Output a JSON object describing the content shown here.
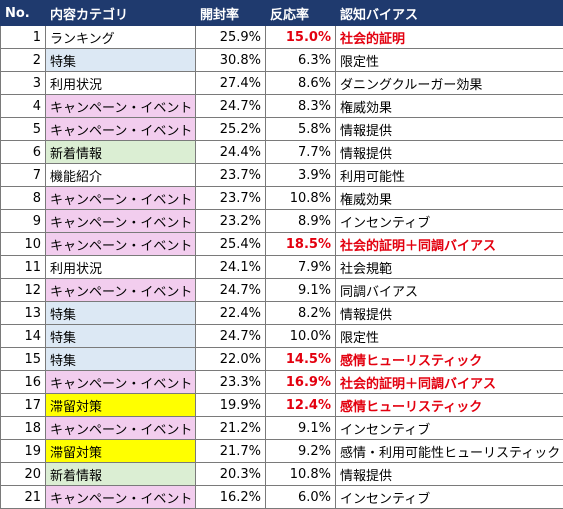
{
  "headers": [
    "No.",
    "内容カテゴリ",
    "開封率",
    "反応率",
    "認知バイアス"
  ],
  "colors": {
    "header_bg": "#1f3a6e",
    "header_text": "#ffffff",
    "campaign_bg": "#f2cdee",
    "feature_bg": "#dce8f4",
    "new_info_bg": "#dbeed3",
    "retention_bg": "#ffff00",
    "highlight_text": "#e3000f"
  },
  "rows": [
    {
      "no": "1",
      "category": "ランキング",
      "open": "25.9%",
      "response": "15.0%",
      "bias": "社会的証明",
      "cat_bg": "",
      "highlight": true
    },
    {
      "no": "2",
      "category": "特集",
      "open": "30.8%",
      "response": "6.3%",
      "bias": "限定性",
      "cat_bg": "feat",
      "highlight": false
    },
    {
      "no": "3",
      "category": "利用状況",
      "open": "27.4%",
      "response": "8.6%",
      "bias": "ダニングクルーガー効果",
      "cat_bg": "",
      "highlight": false
    },
    {
      "no": "4",
      "category": "キャンペーン・イベント",
      "open": "24.7%",
      "response": "8.3%",
      "bias": "権威効果",
      "cat_bg": "camp",
      "highlight": false
    },
    {
      "no": "5",
      "category": "キャンペーン・イベント",
      "open": "25.2%",
      "response": "5.8%",
      "bias": "情報提供",
      "cat_bg": "camp",
      "highlight": false
    },
    {
      "no": "6",
      "category": "新着情報",
      "open": "24.4%",
      "response": "7.7%",
      "bias": "情報提供",
      "cat_bg": "new",
      "highlight": false
    },
    {
      "no": "7",
      "category": "機能紹介",
      "open": "23.7%",
      "response": "3.9%",
      "bias": "利用可能性",
      "cat_bg": "",
      "highlight": false
    },
    {
      "no": "8",
      "category": "キャンペーン・イベント",
      "open": "23.7%",
      "response": "10.8%",
      "bias": "権威効果",
      "cat_bg": "camp",
      "highlight": false
    },
    {
      "no": "9",
      "category": "キャンペーン・イベント",
      "open": "23.2%",
      "response": "8.9%",
      "bias": "インセンティブ",
      "cat_bg": "camp",
      "highlight": false
    },
    {
      "no": "10",
      "category": "キャンペーン・イベント",
      "open": "25.4%",
      "response": "18.5%",
      "bias": "社会的証明＋同調バイアス",
      "cat_bg": "camp",
      "highlight": true
    },
    {
      "no": "11",
      "category": "利用状況",
      "open": "24.1%",
      "response": "7.9%",
      "bias": "社会規範",
      "cat_bg": "",
      "highlight": false
    },
    {
      "no": "12",
      "category": "キャンペーン・イベント",
      "open": "24.7%",
      "response": "9.1%",
      "bias": "同調バイアス",
      "cat_bg": "camp",
      "highlight": false
    },
    {
      "no": "13",
      "category": "特集",
      "open": "22.4%",
      "response": "8.2%",
      "bias": "情報提供",
      "cat_bg": "feat",
      "highlight": false
    },
    {
      "no": "14",
      "category": "特集",
      "open": "24.7%",
      "response": "10.0%",
      "bias": "限定性",
      "cat_bg": "feat",
      "highlight": false
    },
    {
      "no": "15",
      "category": "特集",
      "open": "22.0%",
      "response": "14.5%",
      "bias": "感情ヒューリスティック",
      "cat_bg": "feat",
      "highlight": true
    },
    {
      "no": "16",
      "category": "キャンペーン・イベント",
      "open": "23.3%",
      "response": "16.9%",
      "bias": "社会的証明＋同調バイアス",
      "cat_bg": "camp",
      "highlight": true
    },
    {
      "no": "17",
      "category": "滞留対策",
      "open": "19.9%",
      "response": "12.4%",
      "bias": "感情ヒューリスティック",
      "cat_bg": "stay",
      "highlight": true
    },
    {
      "no": "18",
      "category": "キャンペーン・イベント",
      "open": "21.2%",
      "response": "9.1%",
      "bias": "インセンティブ",
      "cat_bg": "camp",
      "highlight": false
    },
    {
      "no": "19",
      "category": "滞留対策",
      "open": "21.7%",
      "response": "9.2%",
      "bias": "感情・利用可能性ヒューリスティック",
      "cat_bg": "stay",
      "highlight": false
    },
    {
      "no": "20",
      "category": "新着情報",
      "open": "20.3%",
      "response": "10.8%",
      "bias": "情報提供",
      "cat_bg": "new",
      "highlight": false
    },
    {
      "no": "21",
      "category": "キャンペーン・イベント",
      "open": "16.2%",
      "response": "6.0%",
      "bias": "インセンティブ",
      "cat_bg": "camp",
      "highlight": false
    }
  ]
}
